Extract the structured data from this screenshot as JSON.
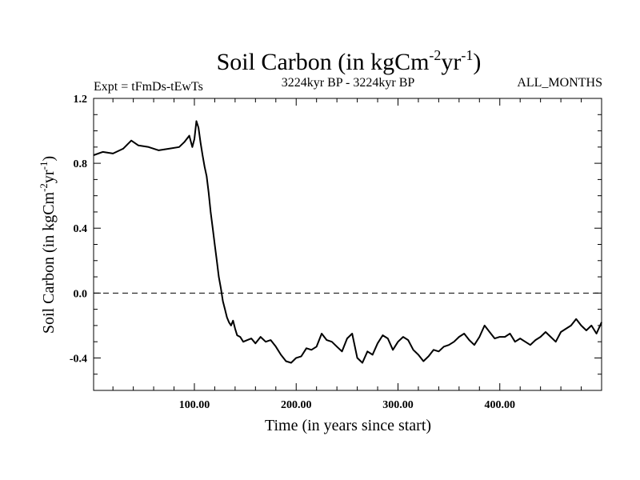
{
  "chart_data": {
    "type": "line",
    "title": {
      "prefix": "Soil Carbon (in kgCm",
      "sup1": "-2",
      "middle": "yr",
      "sup2": "-1",
      "suffix": ")"
    },
    "subtitle_left": "Expt = tFmDs-tEwTs",
    "subtitle_center": "3224kyr BP - 3224kyr BP",
    "subtitle_right": "ALL_MONTHS",
    "xlabel": "Time (in years since start)",
    "ylabel": {
      "prefix": "Soil Carbon (in kgCm",
      "sup1": "-2",
      "middle": "yr",
      "sup2": "-1",
      "suffix": ")"
    },
    "xlim": [
      1,
      500
    ],
    "ylim": [
      -0.6,
      1.2
    ],
    "x_ticks": [
      {
        "value": 100,
        "label": "100.00"
      },
      {
        "value": 200,
        "label": "200.00"
      },
      {
        "value": 300,
        "label": "300.00"
      },
      {
        "value": 400,
        "label": "400.00"
      }
    ],
    "y_ticks": [
      {
        "value": 1.2,
        "label": "1.2"
      },
      {
        "value": 0.8,
        "label": "0.8"
      },
      {
        "value": 0.4,
        "label": "0.4"
      },
      {
        "value": 0.0,
        "label": "0.0"
      },
      {
        "value": -0.4,
        "label": "-0.4"
      }
    ],
    "reference_line": 0.0,
    "series": [
      {
        "name": "Soil Carbon",
        "x": [
          1,
          10,
          20,
          30,
          38,
          45,
          55,
          65,
          75,
          85,
          90,
          95,
          98,
          100,
          102,
          104,
          106,
          108,
          110,
          112,
          114,
          116,
          118,
          120,
          122,
          124,
          126,
          128,
          130,
          132,
          134,
          136,
          138,
          140,
          142,
          145,
          148,
          152,
          156,
          160,
          165,
          170,
          175,
          180,
          185,
          190,
          195,
          200,
          205,
          210,
          215,
          220,
          225,
          230,
          235,
          240,
          245,
          250,
          255,
          260,
          265,
          270,
          275,
          280,
          285,
          290,
          295,
          300,
          305,
          310,
          315,
          320,
          325,
          330,
          335,
          340,
          345,
          350,
          355,
          360,
          365,
          370,
          375,
          380,
          385,
          390,
          395,
          400,
          405,
          410,
          415,
          420,
          425,
          430,
          435,
          440,
          445,
          450,
          455,
          460,
          465,
          470,
          475,
          480,
          485,
          490,
          495,
          500
        ],
        "values": [
          0.85,
          0.87,
          0.86,
          0.89,
          0.94,
          0.91,
          0.9,
          0.88,
          0.89,
          0.9,
          0.93,
          0.97,
          0.9,
          0.95,
          1.06,
          1.02,
          0.93,
          0.85,
          0.78,
          0.72,
          0.62,
          0.5,
          0.4,
          0.3,
          0.2,
          0.1,
          0.03,
          -0.05,
          -0.1,
          -0.15,
          -0.18,
          -0.2,
          -0.17,
          -0.22,
          -0.26,
          -0.27,
          -0.3,
          -0.29,
          -0.28,
          -0.31,
          -0.27,
          -0.3,
          -0.29,
          -0.33,
          -0.38,
          -0.42,
          -0.43,
          -0.4,
          -0.39,
          -0.34,
          -0.35,
          -0.33,
          -0.25,
          -0.29,
          -0.3,
          -0.33,
          -0.36,
          -0.28,
          -0.25,
          -0.4,
          -0.43,
          -0.36,
          -0.38,
          -0.31,
          -0.26,
          -0.28,
          -0.35,
          -0.3,
          -0.27,
          -0.29,
          -0.35,
          -0.38,
          -0.42,
          -0.39,
          -0.35,
          -0.36,
          -0.33,
          -0.32,
          -0.3,
          -0.27,
          -0.25,
          -0.29,
          -0.32,
          -0.27,
          -0.2,
          -0.24,
          -0.28,
          -0.27,
          -0.27,
          -0.25,
          -0.3,
          -0.28,
          -0.3,
          -0.32,
          -0.29,
          -0.27,
          -0.24,
          -0.27,
          -0.3,
          -0.24,
          -0.22,
          -0.2,
          -0.16,
          -0.2,
          -0.23,
          -0.2,
          -0.25,
          -0.18
        ]
      }
    ]
  }
}
